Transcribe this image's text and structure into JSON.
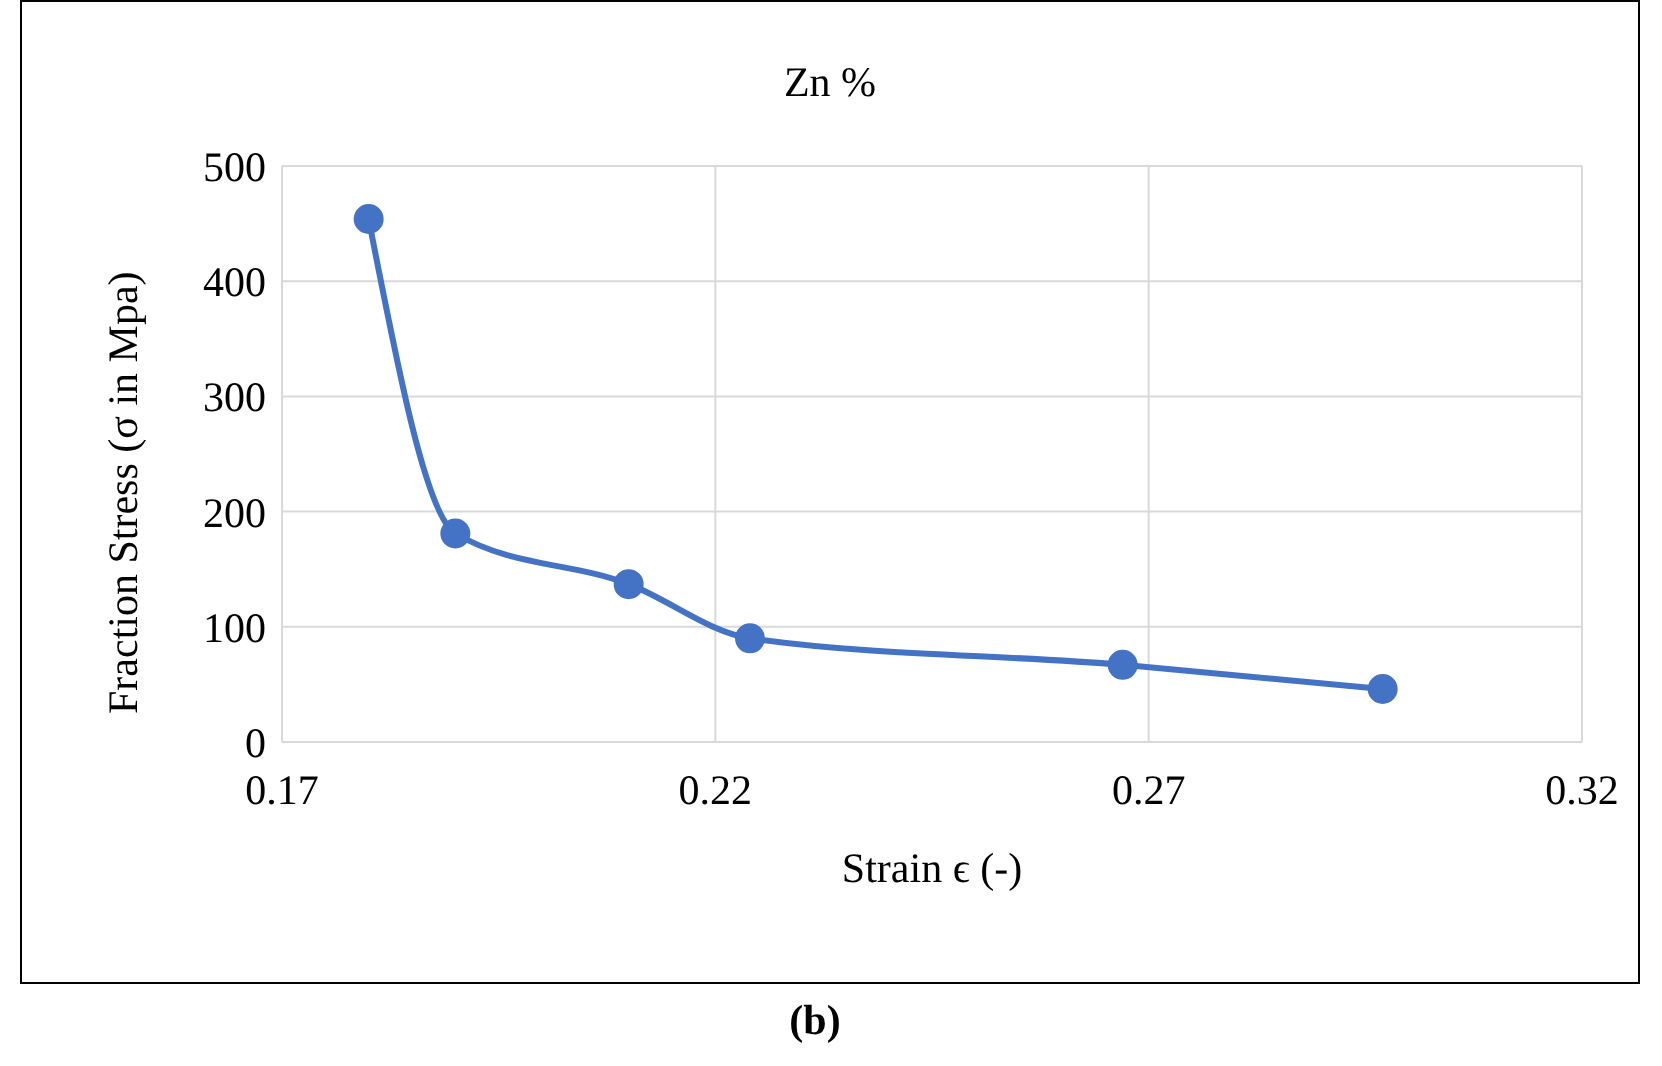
{
  "chart_data": {
    "type": "line",
    "title": "Zn %",
    "xlabel": "Strain ϵ (-)",
    "ylabel": "Fraction Stress (σ in Mpa)",
    "annotations": [
      "(b)"
    ],
    "x": [
      0.18,
      0.19,
      0.21,
      0.224,
      0.267,
      0.297
    ],
    "series": [
      {
        "color": "#4472c4",
        "values": [
          454,
          181,
          137,
          90,
          67,
          46
        ]
      }
    ],
    "xlim": [
      0.17,
      0.32
    ],
    "xticks": [
      0.17,
      0.22,
      0.27,
      0.32
    ],
    "ylim": [
      0,
      500
    ],
    "yticks": [
      0,
      100,
      200,
      300,
      400,
      500
    ],
    "grid": true,
    "legend": false,
    "marker": "circle",
    "line_style": "solid"
  }
}
